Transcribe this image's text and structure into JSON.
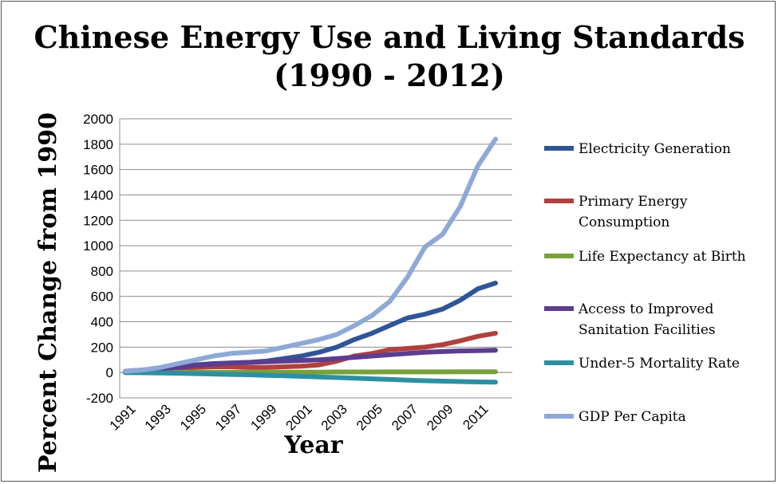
{
  "chart_data": {
    "type": "line",
    "title_lines": [
      "Chinese Energy Use and Living Standards",
      "(1990 - 2012)"
    ],
    "xlabel": "Year",
    "ylabel": "Percent Change from 1990",
    "ylim": [
      -200,
      2000
    ],
    "yticks": [
      -200,
      0,
      200,
      400,
      600,
      800,
      1000,
      1200,
      1400,
      1600,
      1800,
      2000
    ],
    "xticks": [
      "1991",
      "1993",
      "1995",
      "1997",
      "1999",
      "2001",
      "2003",
      "2005",
      "2007",
      "2009",
      "2011"
    ],
    "x": [
      1991,
      1992,
      1993,
      1994,
      1995,
      1996,
      1997,
      1998,
      1999,
      2000,
      2001,
      2002,
      2003,
      2004,
      2005,
      2006,
      2007,
      2008,
      2009,
      2010,
      2011,
      2012
    ],
    "grid": true,
    "legend_position": "right",
    "series": [
      {
        "name_lines": [
          "Electricity Generation"
        ],
        "color": "#2f5597",
        "values": [
          10,
          20,
          30,
          40,
          60,
          70,
          75,
          80,
          90,
          110,
          130,
          160,
          200,
          260,
          310,
          370,
          430,
          460,
          500,
          570,
          660,
          705
        ]
      },
      {
        "name_lines": [
          "Primary Energy",
          "Consumption"
        ],
        "color": "#b0413e",
        "values": [
          5,
          10,
          20,
          30,
          40,
          45,
          45,
          40,
          40,
          45,
          50,
          60,
          90,
          130,
          150,
          180,
          190,
          200,
          220,
          250,
          285,
          310
        ]
      },
      {
        "name_lines": [
          "Life Expectancy at Birth"
        ],
        "color": "#77a23b",
        "values": [
          0,
          1,
          1,
          1,
          2,
          2,
          2,
          3,
          3,
          3,
          3,
          3,
          4,
          4,
          4,
          5,
          5,
          5,
          5,
          6,
          6,
          6
        ]
      },
      {
        "name_lines": [
          "Access to Improved",
          "Sanitation Facilities"
        ],
        "color": "#5c3d8e",
        "values": [
          10,
          20,
          30,
          40,
          55,
          65,
          75,
          80,
          85,
          90,
          95,
          100,
          110,
          120,
          130,
          140,
          150,
          160,
          165,
          170,
          172,
          175
        ]
      },
      {
        "name_lines": [
          "Under-5 Mortality Rate"
        ],
        "color": "#2e8fa3",
        "values": [
          0,
          -2,
          -4,
          -6,
          -9,
          -12,
          -15,
          -18,
          -22,
          -26,
          -30,
          -35,
          -40,
          -45,
          -50,
          -55,
          -60,
          -65,
          -68,
          -71,
          -74,
          -76
        ]
      },
      {
        "name_lines": [
          "GDP Per Capita"
        ],
        "color": "#8ea9d6",
        "values": [
          10,
          20,
          40,
          70,
          100,
          130,
          150,
          160,
          170,
          200,
          230,
          260,
          300,
          370,
          450,
          560,
          750,
          990,
          1090,
          1310,
          1630,
          1840
        ]
      }
    ]
  }
}
